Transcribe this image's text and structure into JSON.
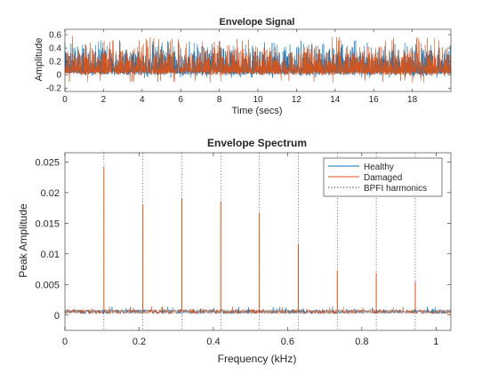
{
  "colors": {
    "healthy": "#0072BD",
    "damaged": "#D95319",
    "harmonics": "#262626",
    "axes": "#262626"
  },
  "chart_data": [
    {
      "type": "line",
      "title": "Envelope Signal",
      "xlabel": "Time (secs)",
      "ylabel": "Amplitude",
      "xlim": [
        0,
        20
      ],
      "ylim": [
        -0.25,
        0.68
      ],
      "xticks": [
        0,
        2,
        4,
        6,
        8,
        10,
        12,
        14,
        16,
        18
      ],
      "xtick_labels": [
        "0",
        "2",
        "4",
        "6",
        "8",
        "10",
        "12",
        "14",
        "16",
        "18"
      ],
      "yticks": [
        -0.2,
        0,
        0.2,
        0.4,
        0.6
      ],
      "ytick_labels": [
        "-0.2",
        "0",
        "0.2",
        "0.4",
        "0.6"
      ],
      "grid": false,
      "series": [
        {
          "name": "Healthy",
          "band": [
            -0.05,
            0.52
          ]
        },
        {
          "name": "Damaged",
          "band": [
            -0.12,
            0.58
          ]
        }
      ]
    },
    {
      "type": "line",
      "title": "Envelope Spectrum",
      "xlabel": "Frequency (kHz)",
      "ylabel": "Peak Amplitude",
      "xlim": [
        0,
        1.04
      ],
      "ylim": [
        -0.0025,
        0.0265
      ],
      "xticks": [
        0,
        0.2,
        0.4,
        0.6,
        0.8,
        1
      ],
      "xtick_labels": [
        "0",
        "0.2",
        "0.4",
        "0.6",
        "0.8",
        "1"
      ],
      "yticks": [
        0,
        0.005,
        0.01,
        0.015,
        0.02,
        0.025
      ],
      "ytick_labels": [
        "0",
        "0.005",
        "0.01",
        "0.015",
        "0.02",
        "0.025"
      ],
      "grid": false,
      "legend": {
        "position": "top-right",
        "entries": [
          "Healthy",
          "Damaged",
          "BPFI harmonics"
        ]
      },
      "noise_floor": {
        "healthy": 0.0008,
        "damaged": 0.0008
      },
      "series": [
        {
          "name": "Healthy"
        },
        {
          "name": "Damaged",
          "peaks_x": [
            0.105,
            0.21,
            0.315,
            0.42,
            0.524,
            0.629,
            0.734,
            0.839,
            0.944
          ],
          "peaks_y": [
            0.0242,
            0.018,
            0.019,
            0.0185,
            0.0167,
            0.0115,
            0.0073,
            0.0069,
            0.0055
          ]
        }
      ],
      "harmonics_x": [
        0.105,
        0.21,
        0.315,
        0.42,
        0.524,
        0.629,
        0.734,
        0.839,
        0.944
      ]
    }
  ]
}
